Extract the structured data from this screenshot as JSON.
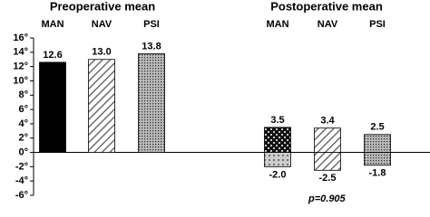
{
  "chart_data": {
    "type": "bar",
    "ylim": [
      -6,
      16
    ],
    "yticks": [
      {
        "value": -6,
        "label": "-6°"
      },
      {
        "value": -4,
        "label": "-4°"
      },
      {
        "value": -2,
        "label": "-2°"
      },
      {
        "value": 0,
        "label": "0°"
      },
      {
        "value": 2,
        "label": "2°"
      },
      {
        "value": 4,
        "label": "4°"
      },
      {
        "value": 6,
        "label": "6°"
      },
      {
        "value": 8,
        "label": "8°"
      },
      {
        "value": 10,
        "label": "10°"
      },
      {
        "value": 12,
        "label": "12°"
      },
      {
        "value": 14,
        "label": "14°"
      },
      {
        "value": 16,
        "label": "16°"
      }
    ],
    "groups": [
      {
        "title": "Preoperative mean",
        "categories": [
          "MAN",
          "NAV",
          "PSI"
        ],
        "values": [
          12.6,
          13.0,
          13.8
        ],
        "value_labels": [
          "12.6",
          "13.0",
          "13.8"
        ]
      },
      {
        "title": "Postoperative mean",
        "categories": [
          "MAN",
          "NAV",
          "PSI"
        ],
        "values": [
          3.5,
          3.4,
          2.5
        ],
        "value_labels": [
          "3.5",
          "3.4",
          "2.5"
        ],
        "negative_values": [
          -2.0,
          -2.5,
          -1.8
        ],
        "negative_value_labels": [
          "-2.0",
          "-2.5",
          "-1.8"
        ]
      }
    ],
    "annotation": "p=0.905"
  }
}
